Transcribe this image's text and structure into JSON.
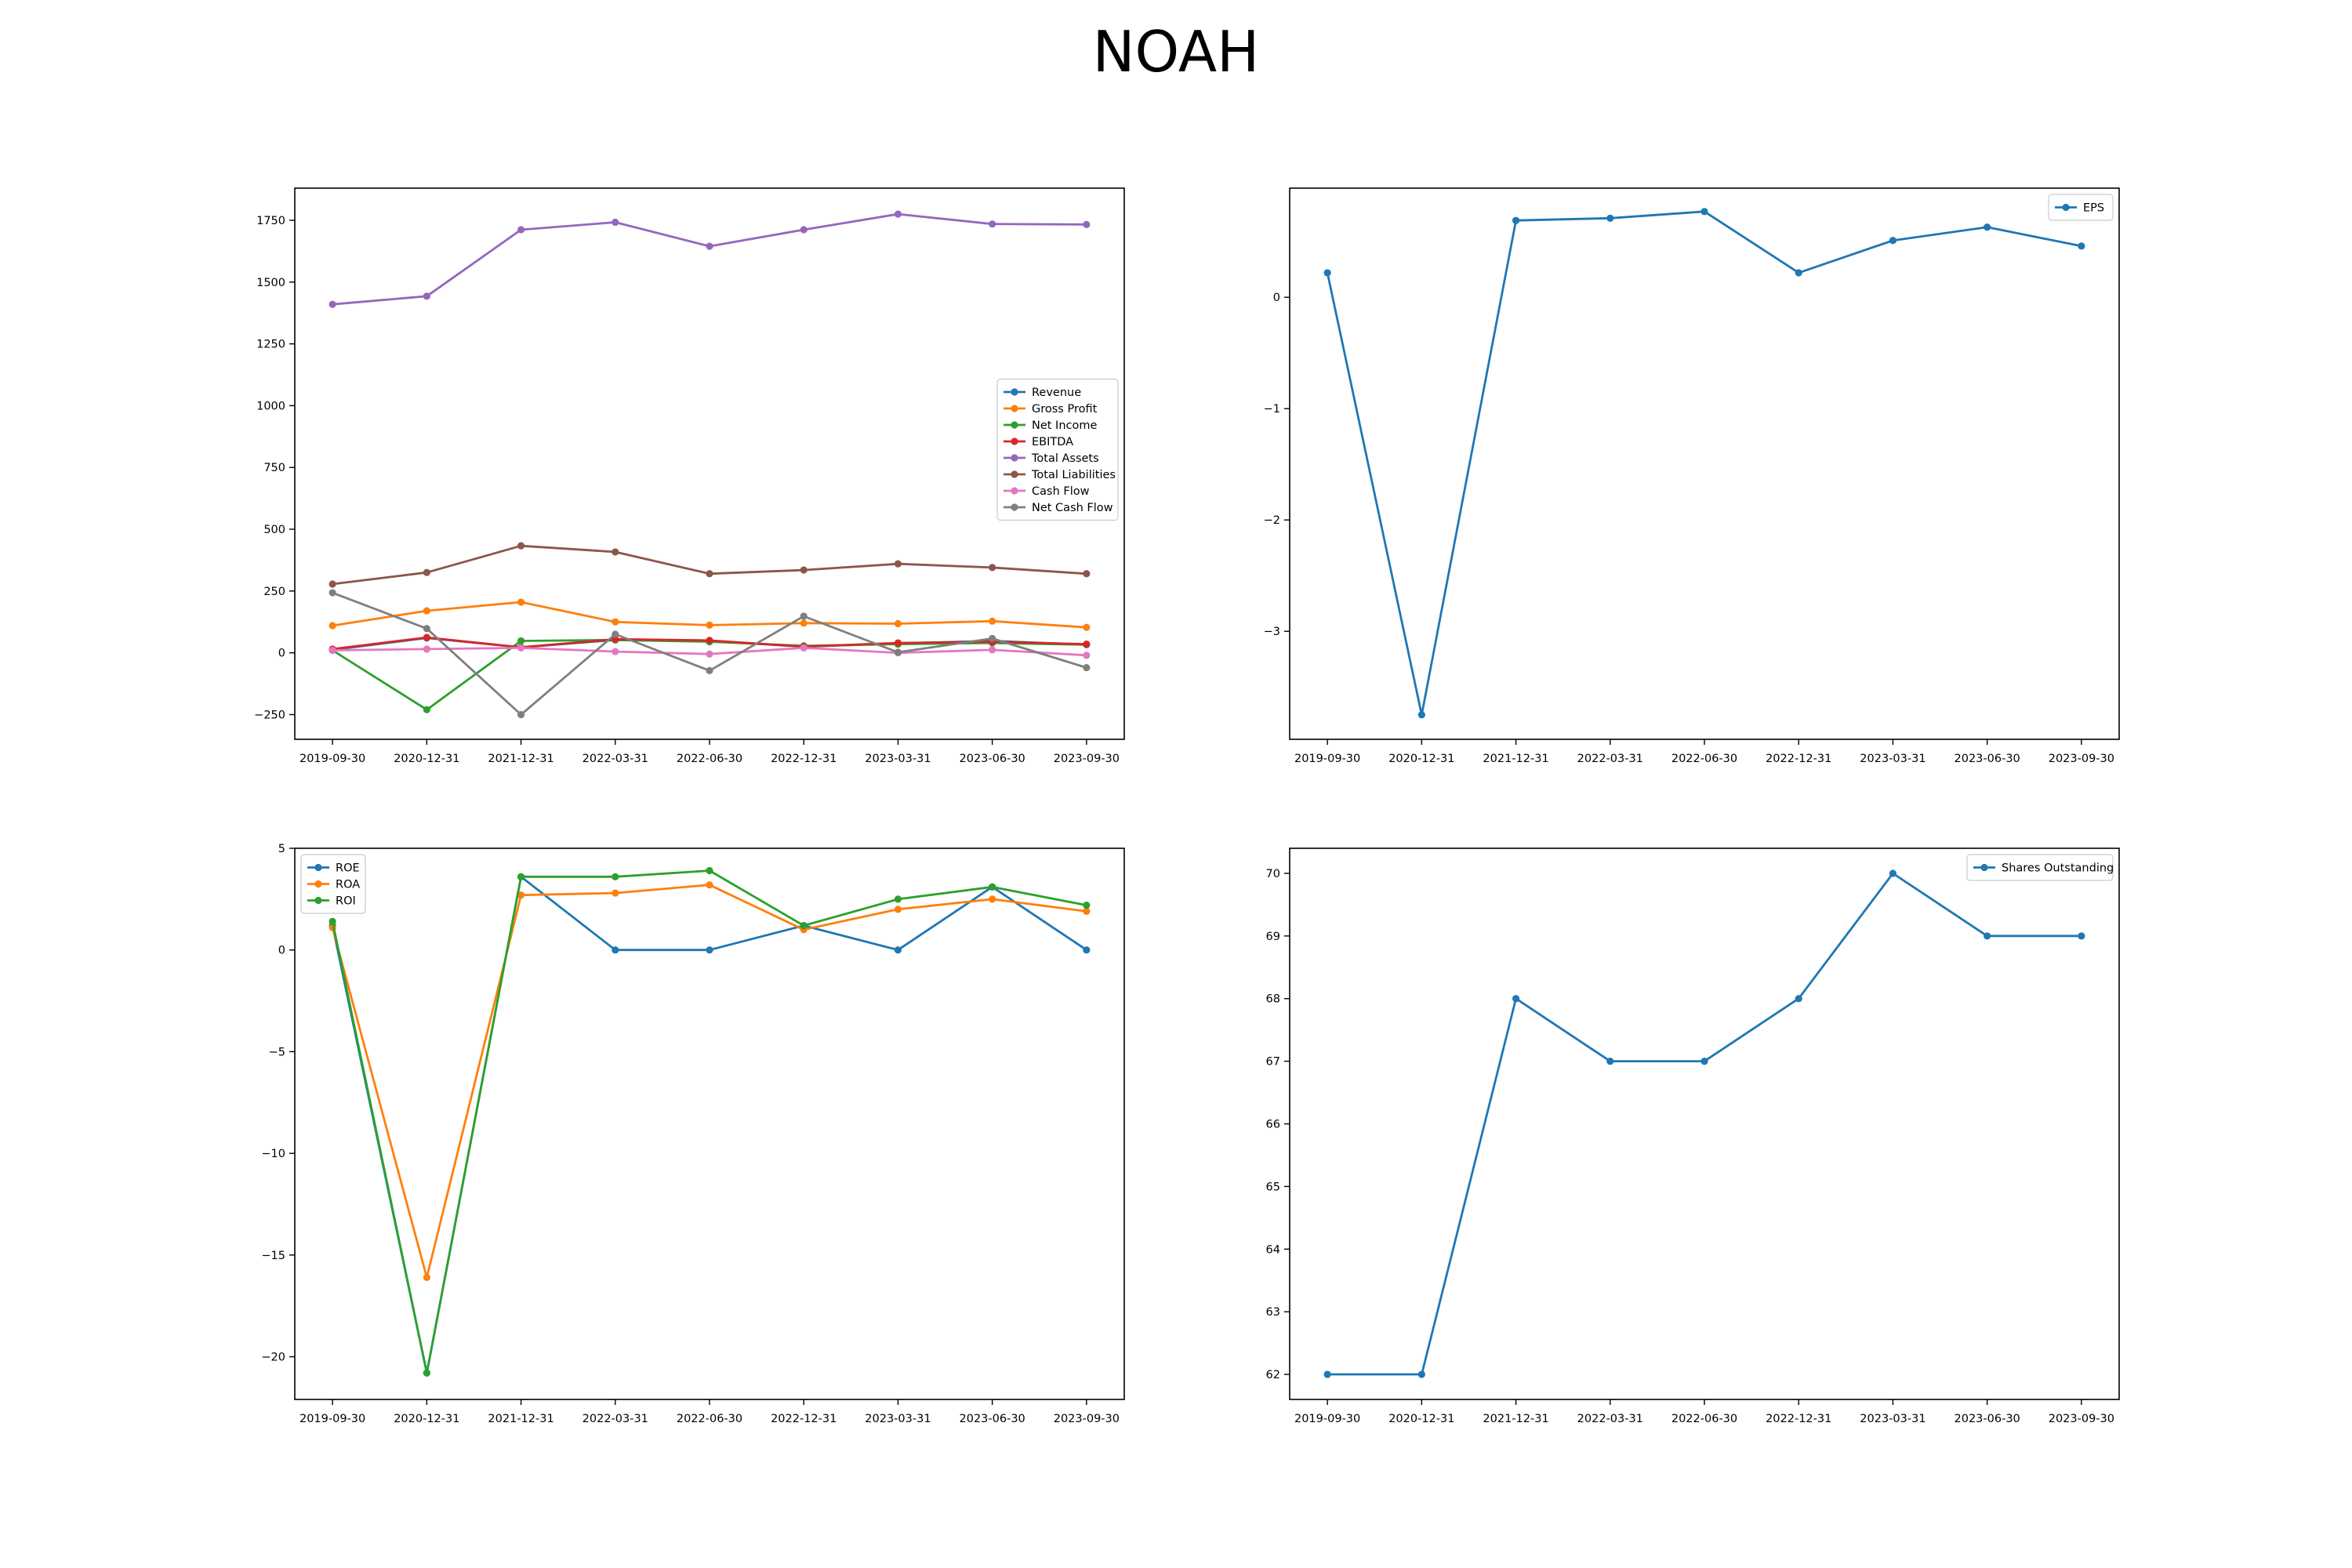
{
  "figure": {
    "title": "NOAH"
  },
  "chart_data": [
    {
      "type": "line",
      "categories": [
        "2019-09-30",
        "2020-12-31",
        "2021-12-31",
        "2022-03-31",
        "2022-06-30",
        "2022-12-31",
        "2023-03-31",
        "2023-06-30",
        "2023-09-30"
      ],
      "yticks": [
        -250,
        0,
        250,
        500,
        750,
        1000,
        1250,
        1500,
        1750
      ],
      "ylim": [
        -350,
        1880
      ],
      "legend": "center-right",
      "series": [
        {
          "name": "Revenue",
          "color": "#1f77b4",
          "values": [
            12,
            60,
            22,
            52,
            48,
            25,
            38,
            48,
            33
          ]
        },
        {
          "name": "Gross Profit",
          "color": "#ff7f0e",
          "values": [
            110,
            170,
            205,
            125,
            112,
            120,
            118,
            128,
            103
          ]
        },
        {
          "name": "Net Income",
          "color": "#2ca02c",
          "values": [
            10,
            -230,
            48,
            52,
            45,
            28,
            35,
            40,
            33
          ]
        },
        {
          "name": "EBITDA",
          "color": "#d62728",
          "values": [
            15,
            62,
            22,
            55,
            50,
            25,
            40,
            45,
            35
          ]
        },
        {
          "name": "Total Assets",
          "color": "#9467bd",
          "values": [
            1410,
            1443,
            1712,
            1742,
            1645,
            1712,
            1775,
            1735,
            1733
          ]
        },
        {
          "name": "Total Liabilities",
          "color": "#8c564b",
          "values": [
            278,
            325,
            433,
            408,
            320,
            335,
            360,
            345,
            320
          ]
        },
        {
          "name": "Cash Flow",
          "color": "#e377c2",
          "values": [
            10,
            15,
            20,
            5,
            -5,
            20,
            0,
            12,
            -10
          ]
        },
        {
          "name": "Net Cash Flow",
          "color": "#7f7f7f",
          "values": [
            243,
            98,
            -250,
            75,
            -72,
            148,
            2,
            58,
            -60
          ]
        }
      ]
    },
    {
      "type": "line",
      "categories": [
        "2019-09-30",
        "2020-12-31",
        "2021-12-31",
        "2022-03-31",
        "2022-06-30",
        "2022-12-31",
        "2023-03-31",
        "2023-06-30",
        "2023-09-30"
      ],
      "yticks": [
        -3,
        -2,
        -1,
        0
      ],
      "ylim": [
        -3.97,
        0.98
      ],
      "legend": "top-right",
      "series": [
        {
          "name": "EPS",
          "color": "#1f77b4",
          "values": [
            0.22,
            -3.75,
            0.69,
            0.71,
            0.77,
            0.22,
            0.51,
            0.63,
            0.46
          ]
        }
      ]
    },
    {
      "type": "line",
      "categories": [
        "2019-09-30",
        "2020-12-31",
        "2021-12-31",
        "2022-03-31",
        "2022-06-30",
        "2022-12-31",
        "2023-03-31",
        "2023-06-30",
        "2023-09-30"
      ],
      "yticks": [
        -20,
        -15,
        -10,
        -5,
        0,
        5
      ],
      "ylim": [
        -22.1,
        5.0
      ],
      "legend": "top-left",
      "series": [
        {
          "name": "ROE",
          "color": "#1f77b4",
          "values": [
            1.2,
            -20.8,
            3.6,
            0.0,
            0.0,
            1.2,
            0.0,
            3.1,
            0.0
          ]
        },
        {
          "name": "ROA",
          "color": "#ff7f0e",
          "values": [
            1.1,
            -16.1,
            2.7,
            2.8,
            3.2,
            1.0,
            2.0,
            2.5,
            1.9
          ]
        },
        {
          "name": "ROI",
          "color": "#2ca02c",
          "values": [
            1.4,
            -20.8,
            3.6,
            3.6,
            3.9,
            1.2,
            2.5,
            3.1,
            2.2
          ]
        }
      ]
    },
    {
      "type": "line",
      "categories": [
        "2019-09-30",
        "2020-12-31",
        "2021-12-31",
        "2022-03-31",
        "2022-06-30",
        "2022-12-31",
        "2023-03-31",
        "2023-06-30",
        "2023-09-30"
      ],
      "yticks": [
        62,
        63,
        64,
        65,
        66,
        67,
        68,
        69,
        70
      ],
      "ylim": [
        61.6,
        70.4
      ],
      "legend": "top-right",
      "series": [
        {
          "name": "Shares Outstanding",
          "color": "#1f77b4",
          "values": [
            62,
            62,
            68,
            67,
            67,
            68,
            70,
            69,
            69
          ]
        }
      ]
    }
  ]
}
